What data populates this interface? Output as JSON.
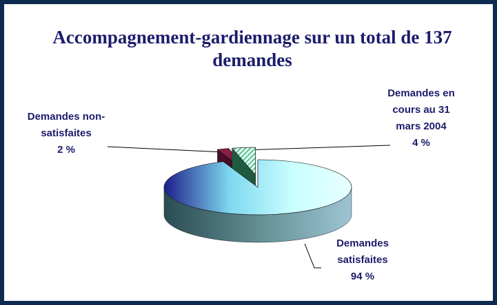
{
  "chart_data": {
    "type": "pie3d",
    "title": "Accompagnement-gardiennage sur un total de 137 demandes",
    "categories": [
      "Demandes satisfaites",
      "Demandes non-satisfaites",
      "Demandes en cours au 31 mars 2004"
    ],
    "values": [
      94,
      2,
      4
    ],
    "value_labels": [
      "94 %",
      "2 %",
      "4 %"
    ],
    "colors": [
      "#99ffff",
      "#8b1c45",
      "#339966"
    ]
  }
}
